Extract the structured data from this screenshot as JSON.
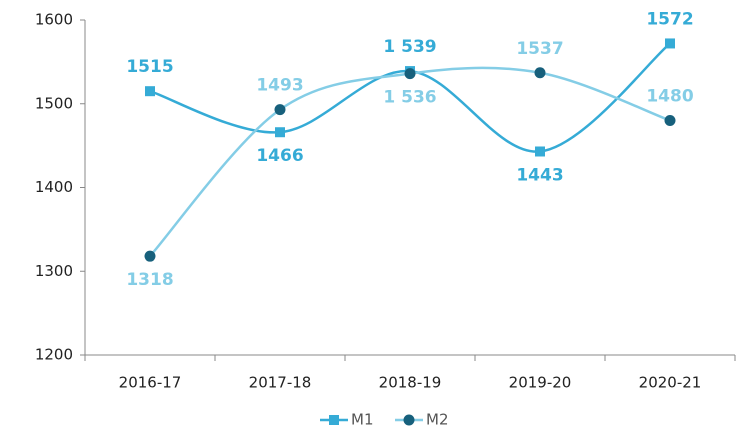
{
  "chart_data": {
    "type": "line",
    "categories": [
      "2016-17",
      "2017-18",
      "2018-19",
      "2019-20",
      "2020-21"
    ],
    "series": [
      {
        "name": "M1",
        "color": "#35abd6",
        "marker": "square",
        "label_color": "#35abd6",
        "values": [
          1515,
          1466,
          1539,
          1443,
          1572
        ],
        "value_labels": [
          "1515",
          "1466",
          "1 539",
          "1443",
          "1572"
        ]
      },
      {
        "name": "M2",
        "color": "#84cde6",
        "marker": "circle",
        "marker_color": "#17607c",
        "label_color": "#84cde6",
        "values": [
          1318,
          1493,
          1536,
          1537,
          1480
        ],
        "value_labels": [
          "1318",
          "1493",
          "1 536",
          "1537",
          "1480"
        ]
      }
    ],
    "smooth": true,
    "ylim": [
      1200,
      1600
    ],
    "yticks": [
      1200,
      1300,
      1400,
      1500,
      1600
    ],
    "grid": false,
    "legend": "bottom"
  }
}
